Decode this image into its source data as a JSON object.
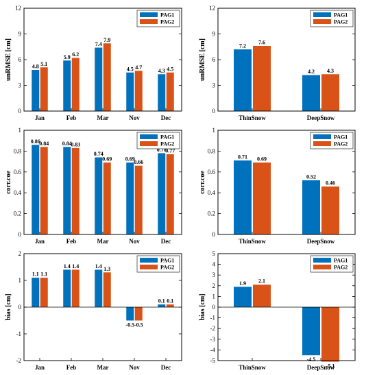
{
  "colors": {
    "PAG1": "#0072BD",
    "PAG2": "#D95319"
  },
  "chart_data": [
    {
      "type": "bar",
      "categories": [
        "Jan",
        "Feb",
        "Mar",
        "Nov",
        "Dec"
      ],
      "series": [
        {
          "name": "PAG1",
          "values": [
            4.8,
            5.9,
            7.4,
            4.5,
            4.3
          ],
          "labels": [
            "4.8",
            "5.9",
            "7.4",
            "4.5",
            "4.3"
          ]
        },
        {
          "name": "PAG2",
          "values": [
            5.1,
            6.2,
            7.9,
            4.7,
            4.5
          ],
          "labels": [
            "5.1",
            "6.2",
            "7.9",
            "4.7",
            "4.5"
          ]
        }
      ],
      "ylabel": "unRMSE [cm]",
      "ylim": [
        0,
        12
      ],
      "yticks": [
        "0",
        "3",
        "6",
        "9",
        "12"
      ],
      "grid": false,
      "legend": "top-right"
    },
    {
      "type": "bar",
      "categories": [
        "ThinSnow",
        "DeepSnow"
      ],
      "series": [
        {
          "name": "PAG1",
          "values": [
            7.2,
            4.2
          ],
          "labels": [
            "7.2",
            "4.2"
          ]
        },
        {
          "name": "PAG2",
          "values": [
            7.6,
            4.3
          ],
          "labels": [
            "7.6",
            "4.3"
          ]
        }
      ],
      "ylabel": "unRMSE [cm]",
      "ylim": [
        0,
        12
      ],
      "yticks": [
        "0",
        "3",
        "6",
        "9",
        "12"
      ],
      "grid": false,
      "legend": "top-right"
    },
    {
      "type": "bar",
      "categories": [
        "Jan",
        "Feb",
        "Mar",
        "Nov",
        "Dec"
      ],
      "series": [
        {
          "name": "PAG1",
          "values": [
            0.86,
            0.84,
            0.74,
            0.69,
            0.78
          ],
          "labels": [
            "0.86",
            "0.84",
            "0.74",
            "0.69",
            "0.78"
          ]
        },
        {
          "name": "PAG2",
          "values": [
            0.84,
            0.83,
            0.69,
            0.66,
            0.77
          ],
          "labels": [
            "0.84",
            "0.83",
            "0.69",
            "0.66",
            "0.77"
          ]
        }
      ],
      "ylabel": "corr.coe",
      "ylim": [
        0,
        1
      ],
      "yticks": [
        "0",
        "0.2",
        "0.4",
        "0.6",
        "0.8",
        "1"
      ],
      "grid": false,
      "legend": "top-right"
    },
    {
      "type": "bar",
      "categories": [
        "ThinSnow",
        "DeepSnow"
      ],
      "series": [
        {
          "name": "PAG1",
          "values": [
            0.71,
            0.52
          ],
          "labels": [
            "0.71",
            "0.52"
          ]
        },
        {
          "name": "PAG2",
          "values": [
            0.69,
            0.46
          ],
          "labels": [
            "0.69",
            "0.46"
          ]
        }
      ],
      "ylabel": "corr.coe",
      "ylim": [
        0,
        1
      ],
      "yticks": [
        "0",
        "0.2",
        "0.4",
        "0.6",
        "0.8",
        "1"
      ],
      "grid": false,
      "legend": "top-right"
    },
    {
      "type": "bar",
      "categories": [
        "Jan",
        "Feb",
        "Mar",
        "Nov",
        "Dec"
      ],
      "series": [
        {
          "name": "PAG1",
          "values": [
            1.1,
            1.4,
            1.4,
            -0.5,
            0.1
          ],
          "labels": [
            "1.1",
            "1.4",
            "1.4",
            "-0.5",
            "0.1"
          ]
        },
        {
          "name": "PAG2",
          "values": [
            1.1,
            1.4,
            1.3,
            -0.5,
            0.1
          ],
          "labels": [
            "1.1",
            "1.4",
            "1.3",
            "-0.5",
            "0.1"
          ]
        }
      ],
      "ylabel": "bias [cm]",
      "ylim": [
        -2,
        2
      ],
      "yticks": [
        "-2",
        "-1",
        "0",
        "1",
        "2"
      ],
      "grid": false,
      "legend": "top-right"
    },
    {
      "type": "bar",
      "categories": [
        "ThinSnow",
        "DeepSnow"
      ],
      "series": [
        {
          "name": "PAG1",
          "values": [
            1.9,
            -4.5
          ],
          "labels": [
            "1.9",
            "-4.5"
          ]
        },
        {
          "name": "PAG2",
          "values": [
            2.1,
            -5.1
          ],
          "labels": [
            "2.1",
            "-5.1"
          ]
        }
      ],
      "ylabel": "bias [cm]",
      "ylim": [
        -5,
        5
      ],
      "yticks": [
        "-5",
        "-4",
        "-3",
        "-2",
        "-1",
        "0",
        "1",
        "2",
        "3",
        "4",
        "5"
      ],
      "grid": false,
      "legend": "top-right"
    }
  ]
}
